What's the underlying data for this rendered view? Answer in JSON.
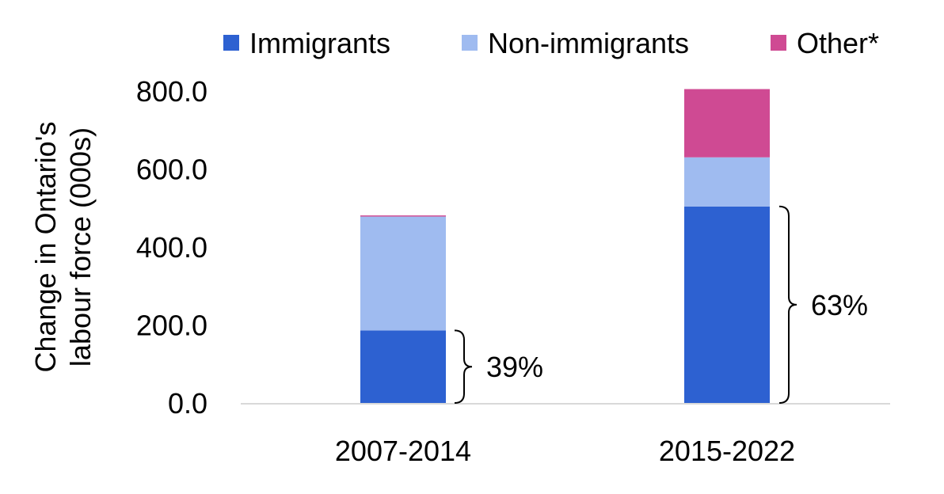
{
  "chart_data": {
    "type": "bar",
    "stacked": true,
    "categories": [
      "2007-2014",
      "2015-2022"
    ],
    "series": [
      {
        "name": "Immigrants",
        "color": "#2d61d1",
        "values": [
          186,
          504
        ]
      },
      {
        "name": "Non-immigrants",
        "color": "#9fbbf0",
        "values": [
          292,
          126
        ]
      },
      {
        "name": "Other*",
        "color": "#cf4a93",
        "values": [
          3,
          175
        ]
      }
    ],
    "ylabel": "Change in Ontario's labour force (000s)",
    "ylabel_lines": [
      "Change in Ontario's",
      "labour force (000s)"
    ],
    "ylim": [
      0,
      800
    ],
    "yticks": [
      "0.0",
      "200.0",
      "400.0",
      "600.0",
      "800.0"
    ],
    "ytick_values": [
      0,
      200,
      400,
      600,
      800
    ],
    "grid": false,
    "legend_position": "top",
    "annotations": [
      {
        "category": "2007-2014",
        "text": "39%",
        "from": 0,
        "to": 186
      },
      {
        "category": "2015-2022",
        "text": "63%",
        "from": 0,
        "to": 504
      }
    ],
    "axis_color": "#d9d9d9"
  }
}
